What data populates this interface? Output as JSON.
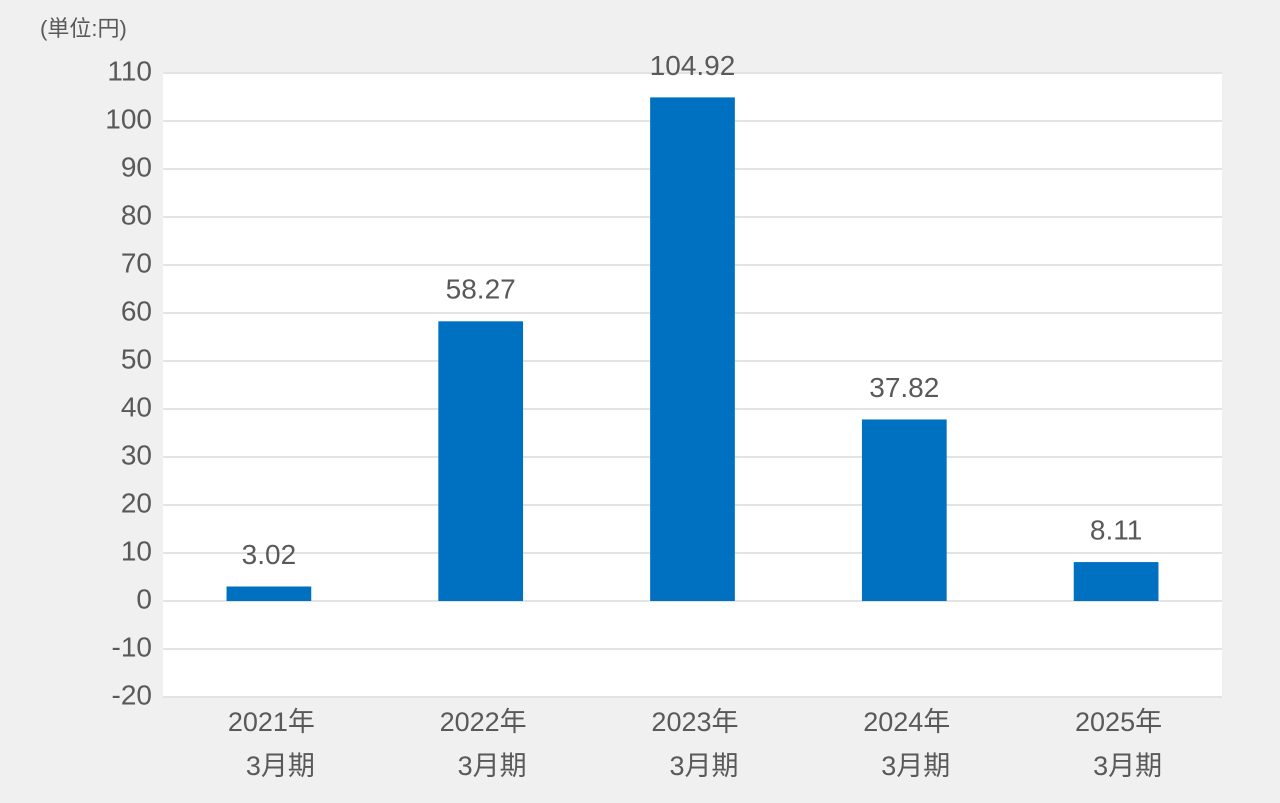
{
  "chart_data": {
    "type": "bar",
    "unit_label": "(単位:円)",
    "categories": [
      [
        "2021年",
        "3月期"
      ],
      [
        "2022年",
        "3月期"
      ],
      [
        "2023年",
        "3月期"
      ],
      [
        "2024年",
        "3月期"
      ],
      [
        "2025年",
        "3月期"
      ]
    ],
    "values": [
      3.02,
      58.27,
      104.92,
      37.82,
      8.11
    ],
    "color": "#0070c0",
    "ylim": [
      -20,
      110
    ],
    "yticks": [
      -20,
      -10,
      0,
      10,
      20,
      30,
      40,
      50,
      60,
      70,
      80,
      90,
      100,
      110
    ],
    "grid": true
  }
}
